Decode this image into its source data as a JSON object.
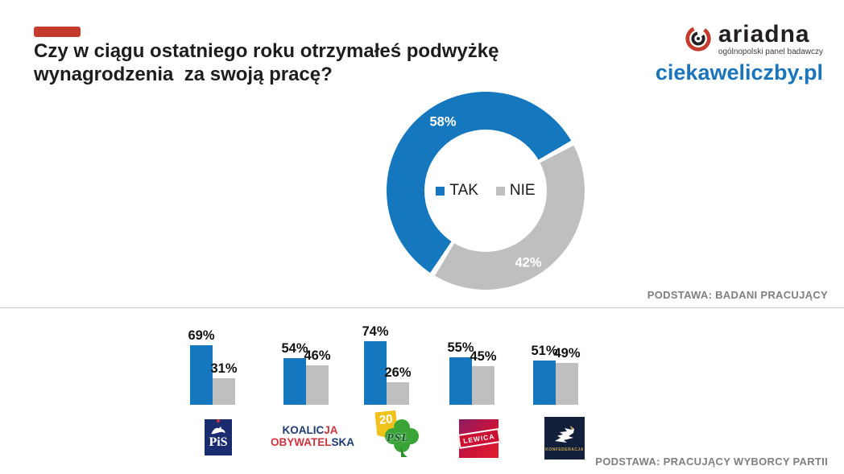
{
  "header": {
    "accent_color": "#c43b2b",
    "title_line1": "Czy w ciągu ostatniego roku otrzymałeś podwyżkę",
    "title_line2": "wynagrodzenia  za swoją pracę?",
    "brand": {
      "name": "ariadna",
      "tagline": "ogólnopolski panel badawczy",
      "site": "ciekaweliczby.pl",
      "site_color": "#1b75bc"
    }
  },
  "chart_data": [
    {
      "type": "pie",
      "subtype": "donut",
      "title": "Czy w ciągu ostatniego roku otrzymałeś podwyżkę wynagrodzenia za swoją pracę?",
      "labels": [
        "TAK",
        "NIE"
      ],
      "values": [
        58,
        42
      ],
      "value_labels": [
        "58%",
        "42%"
      ],
      "colors": [
        "#1577be",
        "#bfbfbf"
      ],
      "legend_position": "center",
      "note": "PODSTAWA: BADANI PRACUJĄCY"
    },
    {
      "type": "bar",
      "categories": [
        "PiS",
        "Koalicja Obywatelska",
        "PSL",
        "Lewica",
        "Konfederacja"
      ],
      "series": [
        {
          "name": "TAK",
          "color": "#1577be",
          "values": [
            69,
            54,
            74,
            55,
            51
          ],
          "value_labels": [
            "69%",
            "54%",
            "74%",
            "55%",
            "51%"
          ]
        },
        {
          "name": "NIE",
          "color": "#bfbfbf",
          "values": [
            31,
            46,
            26,
            45,
            49
          ],
          "value_labels": [
            "31%",
            "46%",
            "26%",
            "45%",
            "49%"
          ]
        }
      ],
      "ylim": [
        0,
        100
      ],
      "grid": false,
      "legend_position": "none",
      "note": "PODSTAWA: PRACUJĄCY WYBORCY PARTII"
    }
  ],
  "logos": {
    "pis": {
      "text": "PiS"
    },
    "ko": {
      "line1_a": "KOALIC",
      "line1_b": "JA",
      "line2_a": "OBYWATEL",
      "line2_b": "SKA"
    },
    "psl": {
      "badge": "20",
      "text": "PSL"
    },
    "lewica": {
      "text": "LEWICA"
    },
    "konfederacja": {
      "text": "KONFEDERACJA"
    }
  }
}
